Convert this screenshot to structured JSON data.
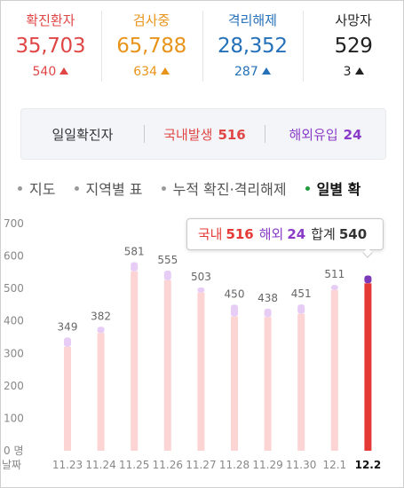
{
  "stats": [
    {
      "label": "확진환자",
      "value": "35,703",
      "change": "540",
      "color": "#e04646"
    },
    {
      "label": "검사중",
      "value": "65,788",
      "change": "634",
      "color": "#e8941a"
    },
    {
      "label": "격리해제",
      "value": "28,352",
      "change": "287",
      "color": "#2470b9"
    },
    {
      "label": "사망자",
      "value": "529",
      "change": "3",
      "color": "#222222"
    }
  ],
  "daily": {
    "title": "일일확진자",
    "domestic_label": "국내발생",
    "domestic_value": "516",
    "overseas_label": "해외유입",
    "overseas_value": "24"
  },
  "tabs": [
    "지도",
    "지역별 표",
    "누적 확진·격리해제",
    "일별 확"
  ],
  "tooltip": {
    "domestic_label": "국내",
    "domestic_value": "516",
    "overseas_label": "해외",
    "overseas_value": "24",
    "total_label": "합계",
    "total_value": "540"
  },
  "chart_data": {
    "type": "bar",
    "categories": [
      "11.23",
      "11.24",
      "11.25",
      "11.26",
      "11.27",
      "11.28",
      "11.29",
      "11.30",
      "12.1",
      "12.2"
    ],
    "series": [
      {
        "name": "국내",
        "values": [
          320,
          363,
          553,
          525,
          488,
          414,
          412,
          422,
          495,
          516
        ]
      },
      {
        "name": "해외",
        "values": [
          29,
          19,
          28,
          30,
          15,
          36,
          26,
          29,
          16,
          24
        ]
      }
    ],
    "totals": [
      349,
      382,
      581,
      555,
      503,
      450,
      438,
      451,
      511,
      540
    ],
    "total_labels": [
      "349",
      "382",
      "581",
      "555",
      "503",
      "450",
      "438",
      "451",
      "511"
    ],
    "highlight_index": 9,
    "yticks": [
      "0 명",
      "100",
      "200",
      "300",
      "400",
      "500",
      "600",
      "700"
    ],
    "ylim": [
      0,
      700
    ],
    "xlabel": "날짜",
    "colors": {
      "domestic": "#fdd4d4",
      "overseas": "#e7cdf6",
      "domestic_active": "#e53935",
      "overseas_active": "#7c3ab8"
    }
  }
}
